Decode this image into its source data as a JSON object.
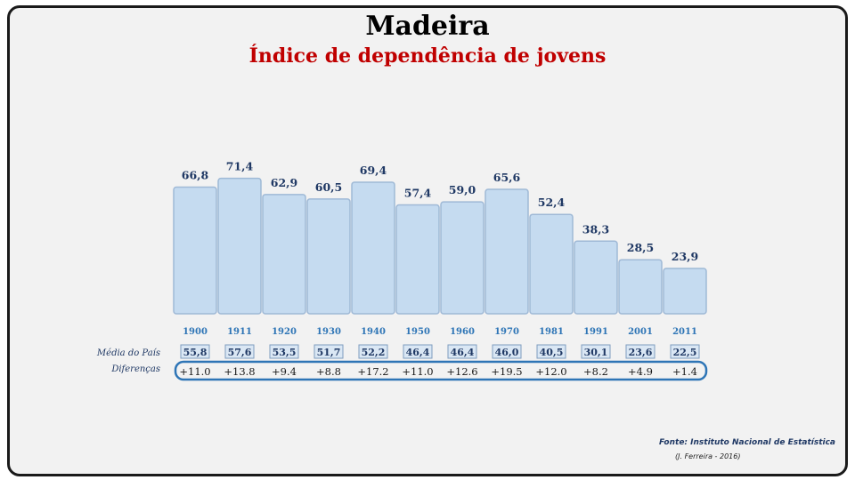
{
  "chart_data": {
    "type": "bar",
    "title": "Madeira",
    "subtitle": "Índice de dependência de jovens",
    "categories": [
      "1900",
      "1911",
      "1920",
      "1930",
      "1940",
      "1950",
      "1960",
      "1970",
      "1981",
      "1991",
      "2001",
      "2011"
    ],
    "value_labels": [
      "66,8",
      "71,4",
      "62,9",
      "60,5",
      "69,4",
      "57,4",
      "59,0",
      "65,6",
      "52,4",
      "38,3",
      "28,5",
      "23,9"
    ],
    "values": [
      66.8,
      71.4,
      62.9,
      60.5,
      69.4,
      57.4,
      59.0,
      65.6,
      52.4,
      38.3,
      28.5,
      23.9
    ],
    "ylim": [
      0,
      75
    ],
    "grid": false,
    "bar_color": "#c5dbf0",
    "bar_stroke": "#9fb9d6",
    "label_color": "#1f3864",
    "year_color": "#2e75b6",
    "national": {
      "label": "Média do País",
      "value_labels": [
        "55,8",
        "57,6",
        "53,5",
        "51,7",
        "52,2",
        "46,4",
        "46,4",
        "46,0",
        "40,5",
        "30,1",
        "23,6",
        "22,5"
      ]
    },
    "differences": {
      "label": "Diferenças",
      "value_labels": [
        "+11.0",
        "+13.8",
        "+9.4",
        "+8.8",
        "+17.2",
        "+11.0",
        "+12.6",
        "+19.5",
        "+12.0",
        "+8.2",
        "+4.9",
        "+1.4"
      ],
      "outline_color": "#2e75b6"
    }
  },
  "footer": {
    "source": "Fonte: Instituto Nacional de Estatística",
    "author": "(J. Ferreira - 2016)"
  }
}
